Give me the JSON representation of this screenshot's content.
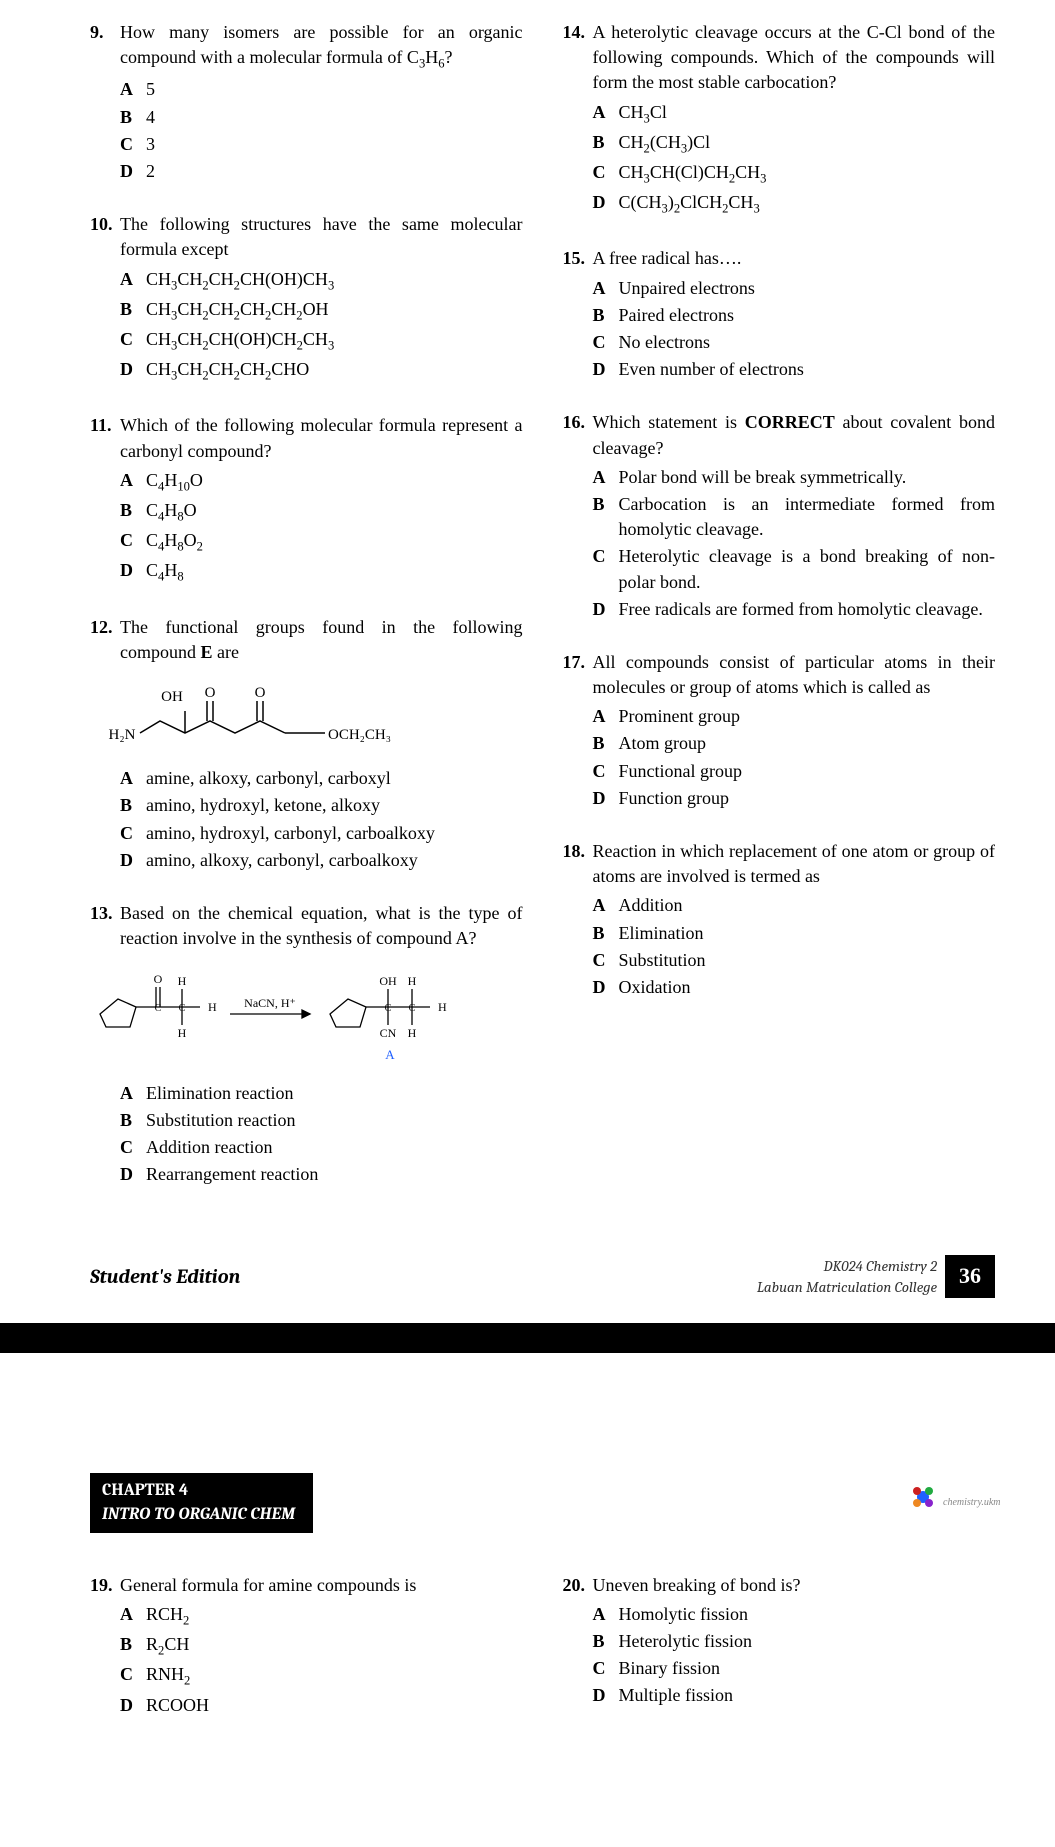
{
  "page": {
    "left_column": [
      {
        "num": "9.",
        "text": "How many isomers are possible for an organic compound with a molecular formula of C<sub>3</sub>H<sub>6</sub>?",
        "options": [
          {
            "l": "A",
            "t": "5"
          },
          {
            "l": "B",
            "t": "4"
          },
          {
            "l": "C",
            "t": "3"
          },
          {
            "l": "D",
            "t": "2"
          }
        ]
      },
      {
        "num": "10.",
        "text": "The following structures have the same molecular formula except",
        "options": [
          {
            "l": "A",
            "t": "CH<sub>3</sub>CH<sub>2</sub>CH<sub>2</sub>CH(OH)CH<sub>3</sub>"
          },
          {
            "l": "B",
            "t": "CH<sub>3</sub>CH<sub>2</sub>CH<sub>2</sub>CH<sub>2</sub>CH<sub>2</sub>OH"
          },
          {
            "l": "C",
            "t": "CH<sub>3</sub>CH<sub>2</sub>CH(OH)CH<sub>2</sub>CH<sub>3</sub>"
          },
          {
            "l": "D",
            "t": "CH<sub>3</sub>CH<sub>2</sub>CH<sub>2</sub>CH<sub>2</sub>CHO"
          }
        ]
      },
      {
        "num": "11.",
        "text": "Which of the following molecular formula represent a carbonyl compound?",
        "options": [
          {
            "l": "A",
            "t": "C<sub>4</sub>H<sub>10</sub>O"
          },
          {
            "l": "B",
            "t": "C<sub>4</sub>H<sub>8</sub>O"
          },
          {
            "l": "C",
            "t": "C<sub>4</sub>H<sub>8</sub>O<sub>2</sub>"
          },
          {
            "l": "D",
            "t": "C<sub>4</sub>H<sub>8</sub>"
          }
        ]
      },
      {
        "num": "12.",
        "text": "The functional groups found in the following compound <b>E</b> are",
        "has_compound_e": true,
        "options": [
          {
            "l": "A",
            "t": "amine, alkoxy, carbonyl, carboxyl"
          },
          {
            "l": "B",
            "t": "amino, hydroxyl, ketone, alkoxy"
          },
          {
            "l": "C",
            "t": "amino, hydroxyl, carbonyl, carboalkoxy"
          },
          {
            "l": "D",
            "t": "amino, alkoxy, carbonyl, carboalkoxy"
          }
        ]
      },
      {
        "num": "13.",
        "text": "Based on the chemical equation, what is the type of reaction involve in the synthesis of compound A?",
        "has_reaction": true,
        "options": [
          {
            "l": "A",
            "t": "Elimination reaction"
          },
          {
            "l": "B",
            "t": "Substitution reaction"
          },
          {
            "l": "C",
            "t": "Addition reaction"
          },
          {
            "l": "D",
            "t": "Rearrangement reaction"
          }
        ]
      }
    ],
    "right_column": [
      {
        "num": "14.",
        "text": "A heterolytic cleavage occurs at the C-Cl bond of the following compounds. Which of the compounds will form the most stable carbocation?",
        "options": [
          {
            "l": "A",
            "t": "CH<sub>3</sub>Cl"
          },
          {
            "l": "B",
            "t": "CH<sub>2</sub>(CH<sub>3</sub>)Cl"
          },
          {
            "l": "C",
            "t": "CH<sub>3</sub>CH(Cl)CH<sub>2</sub>CH<sub>3</sub>"
          },
          {
            "l": "D",
            "t": "C(CH<sub>3</sub>)<sub>2</sub>ClCH<sub>2</sub>CH<sub>3</sub>"
          }
        ]
      },
      {
        "num": "15.",
        "text": "A free radical has….",
        "options": [
          {
            "l": "A",
            "t": "Unpaired electrons"
          },
          {
            "l": "B",
            "t": "Paired electrons"
          },
          {
            "l": "C",
            "t": "No electrons"
          },
          {
            "l": "D",
            "t": "Even number of electrons"
          }
        ]
      },
      {
        "num": "16.",
        "text": "Which statement is <b>CORRECT</b> about covalent bond cleavage?",
        "options": [
          {
            "l": "A",
            "t": "Polar bond will be break symmetrically."
          },
          {
            "l": "B",
            "t": "Carbocation is an intermediate formed from homolytic cleavage."
          },
          {
            "l": "C",
            "t": "Heterolytic cleavage is a bond breaking of non-polar bond."
          },
          {
            "l": "D",
            "t": "Free radicals are formed from homolytic cleavage."
          }
        ]
      },
      {
        "num": "17.",
        "text": "All compounds consist of particular atoms in their molecules or group of atoms which is called as",
        "options": [
          {
            "l": "A",
            "t": "Prominent group"
          },
          {
            "l": "B",
            "t": "Atom group"
          },
          {
            "l": "C",
            "t": "Functional group"
          },
          {
            "l": "D",
            "t": "Function group"
          }
        ]
      },
      {
        "num": "18.",
        "text": "Reaction in which replacement of one atom or group of atoms are involved is termed as",
        "options": [
          {
            "l": "A",
            "t": "Addition"
          },
          {
            "l": "B",
            "t": "Elimination"
          },
          {
            "l": "C",
            "t": "Substitution"
          },
          {
            "l": "D",
            "t": "Oxidation"
          }
        ]
      }
    ],
    "page2_left": [
      {
        "num": "19.",
        "text": "General formula for amine compounds is",
        "options": [
          {
            "l": "A",
            "t": "RCH<sub>2</sub>"
          },
          {
            "l": "B",
            "t": "R<sub>2</sub>CH"
          },
          {
            "l": "C",
            "t": "RNH<sub>2</sub>"
          },
          {
            "l": "D",
            "t": "RCOOH"
          }
        ]
      }
    ],
    "page2_right": [
      {
        "num": "20.",
        "text": "Uneven breaking of bond is?",
        "options": [
          {
            "l": "A",
            "t": "Homolytic fission"
          },
          {
            "l": "B",
            "t": "Heterolytic fission"
          },
          {
            "l": "C",
            "t": "Binary fission"
          },
          {
            "l": "D",
            "t": "Multiple fission"
          }
        ]
      }
    ]
  },
  "footer": {
    "students_edition": "Student's Edition",
    "course": "DK024 Chemistry 2",
    "college": "Labuan Matriculation College",
    "page_num": "36"
  },
  "chapter": {
    "title": "CHAPTER 4",
    "subtitle": "INTRO TO ORGANIC CHEM",
    "logo_text": "chemistry.ukm"
  },
  "compound_e": {
    "labels": {
      "oh": "OH",
      "o1": "O",
      "o2": "O",
      "h2n": "H₂N",
      "och2ch3": "OCH₂CH₃"
    }
  },
  "reaction": {
    "reagent": "NaCN, H⁺",
    "product_label": "A",
    "atoms": {
      "o": "O",
      "h": "H",
      "oh": "OH",
      "cn": "CN",
      "c": "C"
    }
  },
  "colors": {
    "black": "#000000",
    "white": "#ffffff",
    "blue": "#2060ff",
    "red": "#cc2020",
    "green": "#20aa40",
    "orange": "#ee8822"
  }
}
